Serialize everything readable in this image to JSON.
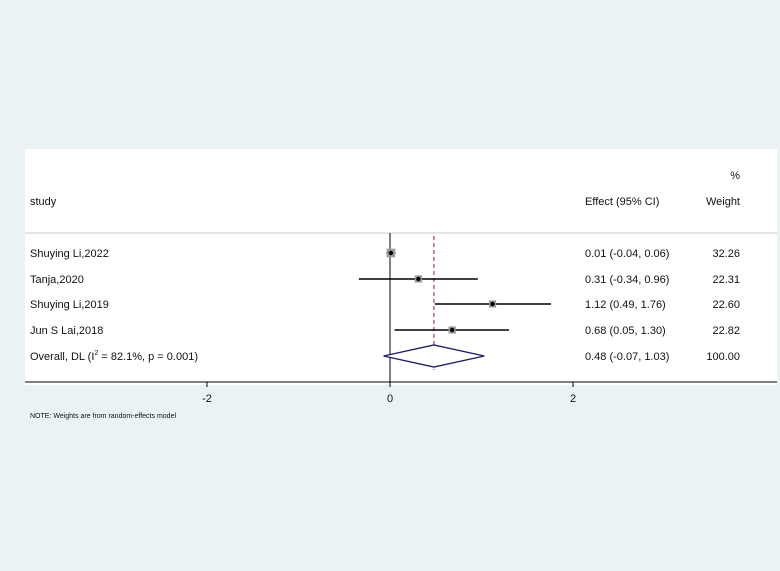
{
  "chart_data": {
    "type": "forest",
    "headers": {
      "study": "study",
      "effect": "Effect (95% CI)",
      "weight_pct": "%",
      "weight": "Weight"
    },
    "studies": [
      {
        "label": "Shuying Li,2022",
        "effect": 0.01,
        "lower": -0.04,
        "upper": 0.06,
        "effect_text": "0.01 (-0.04, 0.06)",
        "weight": 32.26,
        "weight_text": "32.26"
      },
      {
        "label": "Tanja,2020",
        "effect": 0.31,
        "lower": -0.34,
        "upper": 0.96,
        "effect_text": "0.31 (-0.34, 0.96)",
        "weight": 22.31,
        "weight_text": "22.31"
      },
      {
        "label": "Shuying Li,2019",
        "effect": 1.12,
        "lower": 0.49,
        "upper": 1.76,
        "effect_text": "1.12 (0.49, 1.76)",
        "weight": 22.6,
        "weight_text": "22.60"
      },
      {
        "label": "Jun S Lai,2018",
        "effect": 0.68,
        "lower": 0.05,
        "upper": 1.3,
        "effect_text": "0.68 (0.05, 1.30)",
        "weight": 22.82,
        "weight_text": "22.82"
      }
    ],
    "overall": {
      "label_prefix": "Overall, DL (I",
      "label_sup": "2",
      "label_suffix": " = 82.1%, p = 0.001)",
      "effect": 0.48,
      "lower": -0.07,
      "upper": 1.03,
      "effect_text": "0.48 (-0.07, 1.03)",
      "weight_text": "100.00"
    },
    "x_ticks": [
      -2,
      0,
      2
    ],
    "x_tick_labels": [
      "-2",
      "0",
      "2"
    ],
    "xlim": [
      -4,
      4
    ],
    "null_line": 0,
    "colors": {
      "background": "#eaf2f3",
      "panel": "#ffffff",
      "overall_diamond": "#1c1c6e",
      "overall_line": "#8b2040",
      "ci_line": "#000000",
      "weight_box": "#9a9a9a"
    }
  },
  "note": "NOTE: Weights are from random-effects model"
}
